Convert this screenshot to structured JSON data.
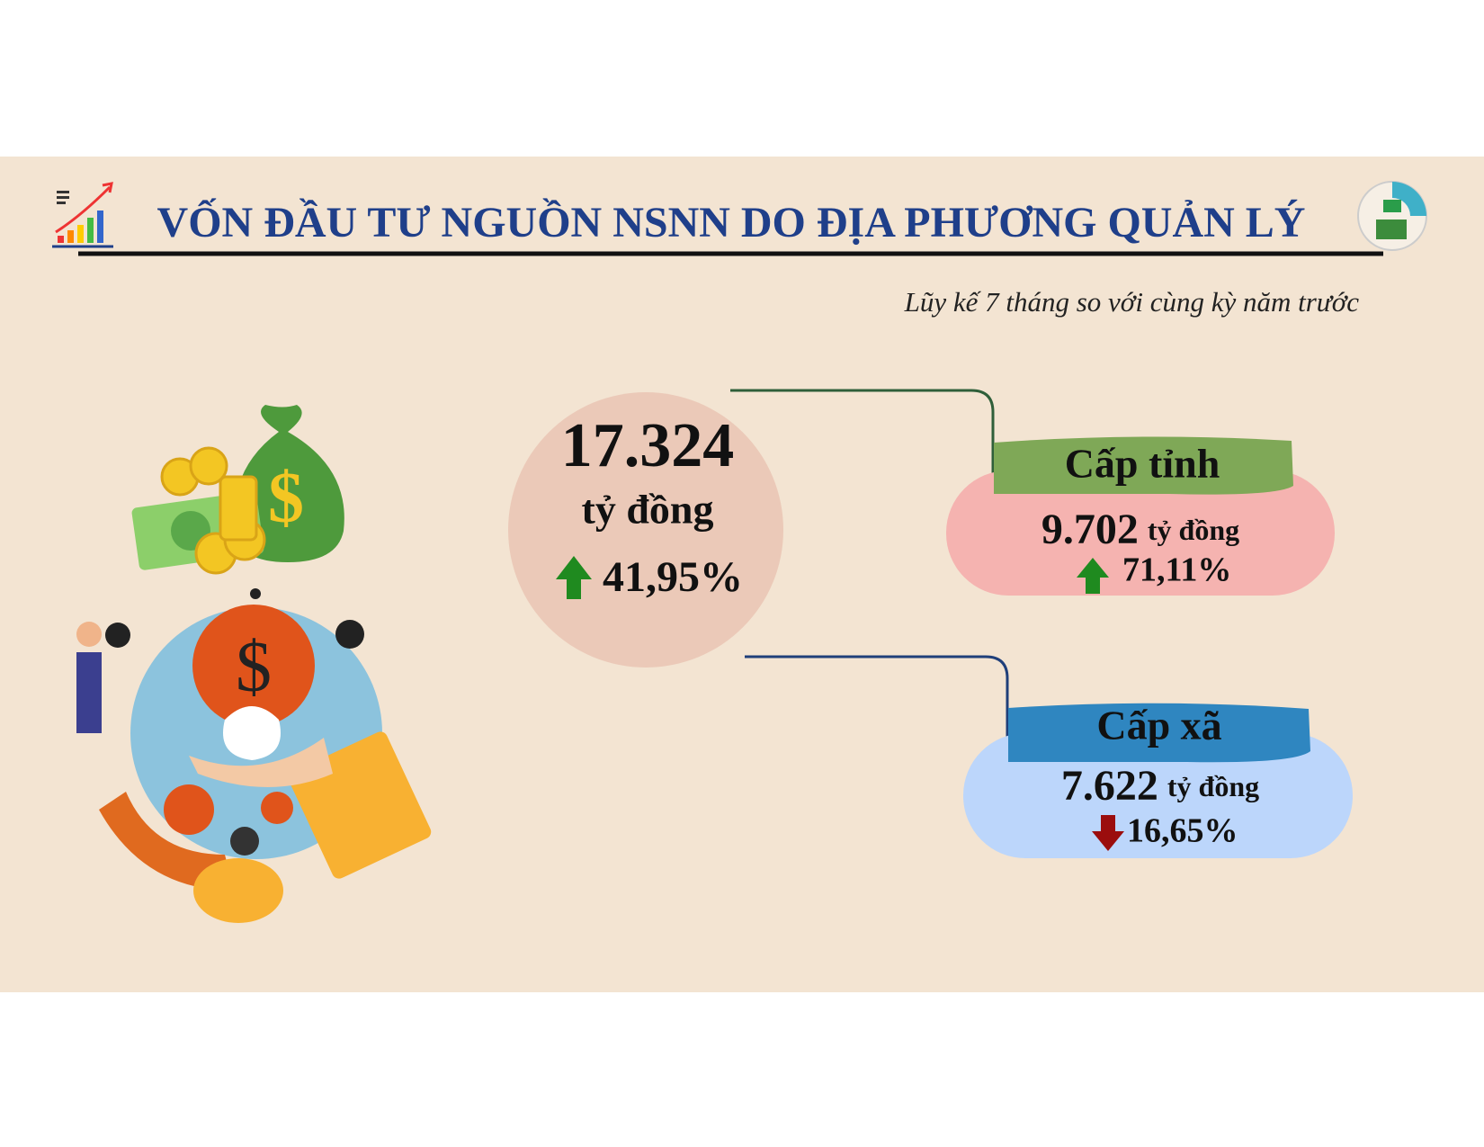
{
  "header": {
    "title": "VỐN ĐẦU TƯ NGUỒN NSNN DO ĐỊA PHƯƠNG QUẢN LÝ",
    "subtitle": "Lũy kế 7 tháng so với cùng kỳ năm trước"
  },
  "total": {
    "value": "17.324",
    "unit": "tỷ đồng",
    "change": "41,95%"
  },
  "items": [
    {
      "label": "Cấp tỉnh",
      "value": "9.702",
      "unit": "tỷ đồng",
      "change": "71,11%"
    },
    {
      "label": "Cấp xã",
      "value": "7.622",
      "unit": "tỷ đồng",
      "change": "16,65%"
    }
  ]
}
